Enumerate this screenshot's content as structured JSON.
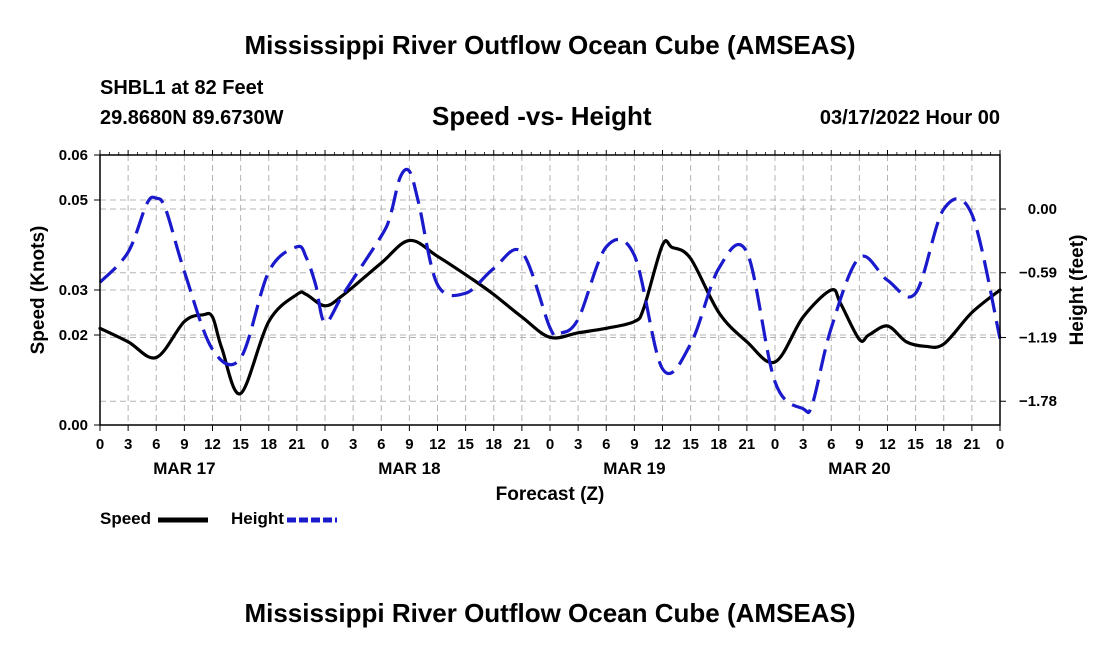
{
  "header": {
    "title": "Mississippi River Outflow Ocean Cube (AMSEAS)",
    "station": "SHBL1 at 82 Feet",
    "coords": "29.8680N  89.6730W",
    "subtitle": "Speed -vs- Height",
    "datetime": "03/17/2022 Hour 00"
  },
  "footer": {
    "title": "Mississippi River Outflow Ocean Cube (AMSEAS)"
  },
  "colors": {
    "speed": "#000000",
    "height": "#1a1acc",
    "grid": "#b4b4b4"
  },
  "legend": {
    "speed_label": "Speed",
    "height_label": "Height"
  },
  "chart_data": {
    "type": "line",
    "title": "Speed -vs- Height",
    "xlabel": "Forecast (Z)",
    "ylabel": "Speed (Knots)",
    "y2label": "Height (feet)",
    "xlim": [
      0,
      96
    ],
    "ylim": [
      0.0,
      0.06
    ],
    "y2lim": [
      -2.0,
      0.5
    ],
    "grid": true,
    "x_ticks": [
      0,
      3,
      6,
      9,
      12,
      15,
      18,
      21,
      24,
      27,
      30,
      33,
      36,
      39,
      42,
      45,
      48,
      51,
      54,
      57,
      60,
      63,
      66,
      69,
      72,
      75,
      78,
      81,
      84,
      87,
      90,
      93,
      96
    ],
    "x_tick_labels": [
      "0",
      "3",
      "6",
      "9",
      "12",
      "15",
      "18",
      "21",
      "0",
      "3",
      "6",
      "9",
      "12",
      "15",
      "18",
      "21",
      "0",
      "3",
      "6",
      "9",
      "12",
      "15",
      "18",
      "21",
      "0",
      "3",
      "6",
      "9",
      "12",
      "15",
      "18",
      "21",
      "0"
    ],
    "date_labels": [
      {
        "hour": 9,
        "label": "MAR 17"
      },
      {
        "hour": 33,
        "label": "MAR 18"
      },
      {
        "hour": 57,
        "label": "MAR 19"
      },
      {
        "hour": 81,
        "label": "MAR 20"
      }
    ],
    "y_ticks": [
      0.0,
      0.02,
      0.03,
      0.05,
      0.06
    ],
    "y_tick_labels": [
      "0.00",
      "0.02",
      "0.03",
      "0.05",
      "0.06"
    ],
    "y2_ticks": [
      0.0,
      -0.59,
      -1.19,
      -1.78
    ],
    "y2_tick_labels": [
      "0.00",
      "-0.59",
      "-1.19",
      "-1.78"
    ],
    "series": [
      {
        "name": "Speed",
        "axis": "left",
        "style": "solid",
        "x": [
          0,
          3,
          6,
          9,
          11,
          12,
          13,
          15,
          18,
          21,
          22,
          24,
          26,
          30,
          33,
          36,
          40,
          42,
          45,
          48,
          51,
          54,
          57,
          58,
          60,
          61,
          63,
          66,
          69,
          72,
          75,
          78,
          79,
          81,
          82,
          84,
          86,
          88,
          90,
          93,
          96
        ],
        "y": [
          0.0215,
          0.0185,
          0.015,
          0.023,
          0.0245,
          0.024,
          0.017,
          0.007,
          0.023,
          0.029,
          0.029,
          0.0265,
          0.029,
          0.036,
          0.041,
          0.0375,
          0.032,
          0.029,
          0.024,
          0.0195,
          0.0205,
          0.0215,
          0.023,
          0.026,
          0.04,
          0.0395,
          0.037,
          0.025,
          0.0185,
          0.014,
          0.024,
          0.03,
          0.027,
          0.019,
          0.02,
          0.022,
          0.0185,
          0.0175,
          0.018,
          0.025,
          0.03
        ]
      },
      {
        "name": "Height",
        "axis": "right",
        "style": "dashed",
        "x": [
          0,
          3,
          5,
          6,
          7,
          9,
          12,
          15,
          18,
          21,
          22,
          23,
          24,
          26,
          30,
          31,
          32,
          33,
          34,
          36,
          39,
          42,
          45,
          48,
          49,
          51,
          54,
          57,
          60,
          63,
          66,
          69,
          72,
          75,
          76,
          78,
          81,
          84,
          87,
          90,
          93,
          96
        ],
        "y": [
          -0.68,
          -0.4,
          0.05,
          0.1,
          0.0,
          -0.58,
          -1.3,
          -1.38,
          -0.58,
          -0.35,
          -0.45,
          -0.7,
          -1.05,
          -0.78,
          -0.25,
          -0.05,
          0.29,
          0.35,
          0.05,
          -0.7,
          -0.78,
          -0.55,
          -0.4,
          -1.1,
          -1.15,
          -1.02,
          -0.35,
          -0.43,
          -1.48,
          -1.25,
          -0.55,
          -0.4,
          -1.6,
          -1.85,
          -1.8,
          -1.1,
          -0.45,
          -0.66,
          -0.78,
          0.0,
          -0.05,
          -1.2
        ]
      }
    ]
  }
}
